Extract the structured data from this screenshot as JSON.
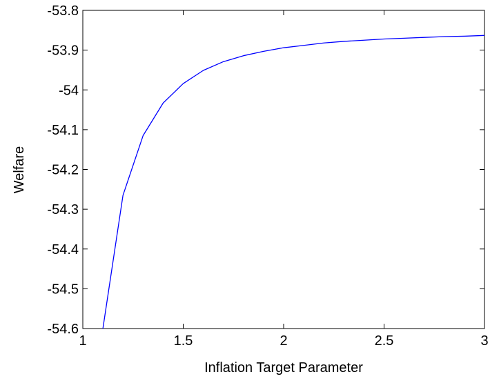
{
  "chart_data": {
    "type": "line",
    "title": "",
    "xlabel": "Inflation Target Parameter",
    "ylabel": "Welfare",
    "xlim": [
      1,
      3
    ],
    "ylim": [
      -54.6,
      -53.8
    ],
    "x_ticks": [
      1,
      1.5,
      2,
      2.5,
      3
    ],
    "x_tick_labels": [
      "1",
      "1.5",
      "2",
      "2.5",
      "3"
    ],
    "y_ticks": [
      -53.8,
      -53.9,
      -54,
      -54.1,
      -54.2,
      -54.3,
      -54.4,
      -54.5,
      -54.6
    ],
    "y_tick_labels": [
      "-53.8",
      "-53.9",
      "-54",
      "-54.1",
      "-54.2",
      "-54.3",
      "-54.4",
      "-54.5",
      "-54.6"
    ],
    "grid": false,
    "legend": "none",
    "series": [
      {
        "color": "#0000ff",
        "x": [
          1.1,
          1.2,
          1.3,
          1.4,
          1.5,
          1.6,
          1.7,
          1.8,
          1.9,
          2.0,
          2.1,
          2.2,
          2.3,
          2.4,
          2.5,
          2.6,
          2.7,
          2.8,
          2.9,
          3.0
        ],
        "y": [
          -54.6,
          -54.265,
          -54.115,
          -54.033,
          -53.984,
          -53.951,
          -53.929,
          -53.914,
          -53.903,
          -53.894,
          -53.888,
          -53.882,
          -53.878,
          -53.875,
          -53.872,
          -53.87,
          -53.868,
          -53.866,
          -53.865,
          -53.863
        ]
      }
    ]
  }
}
